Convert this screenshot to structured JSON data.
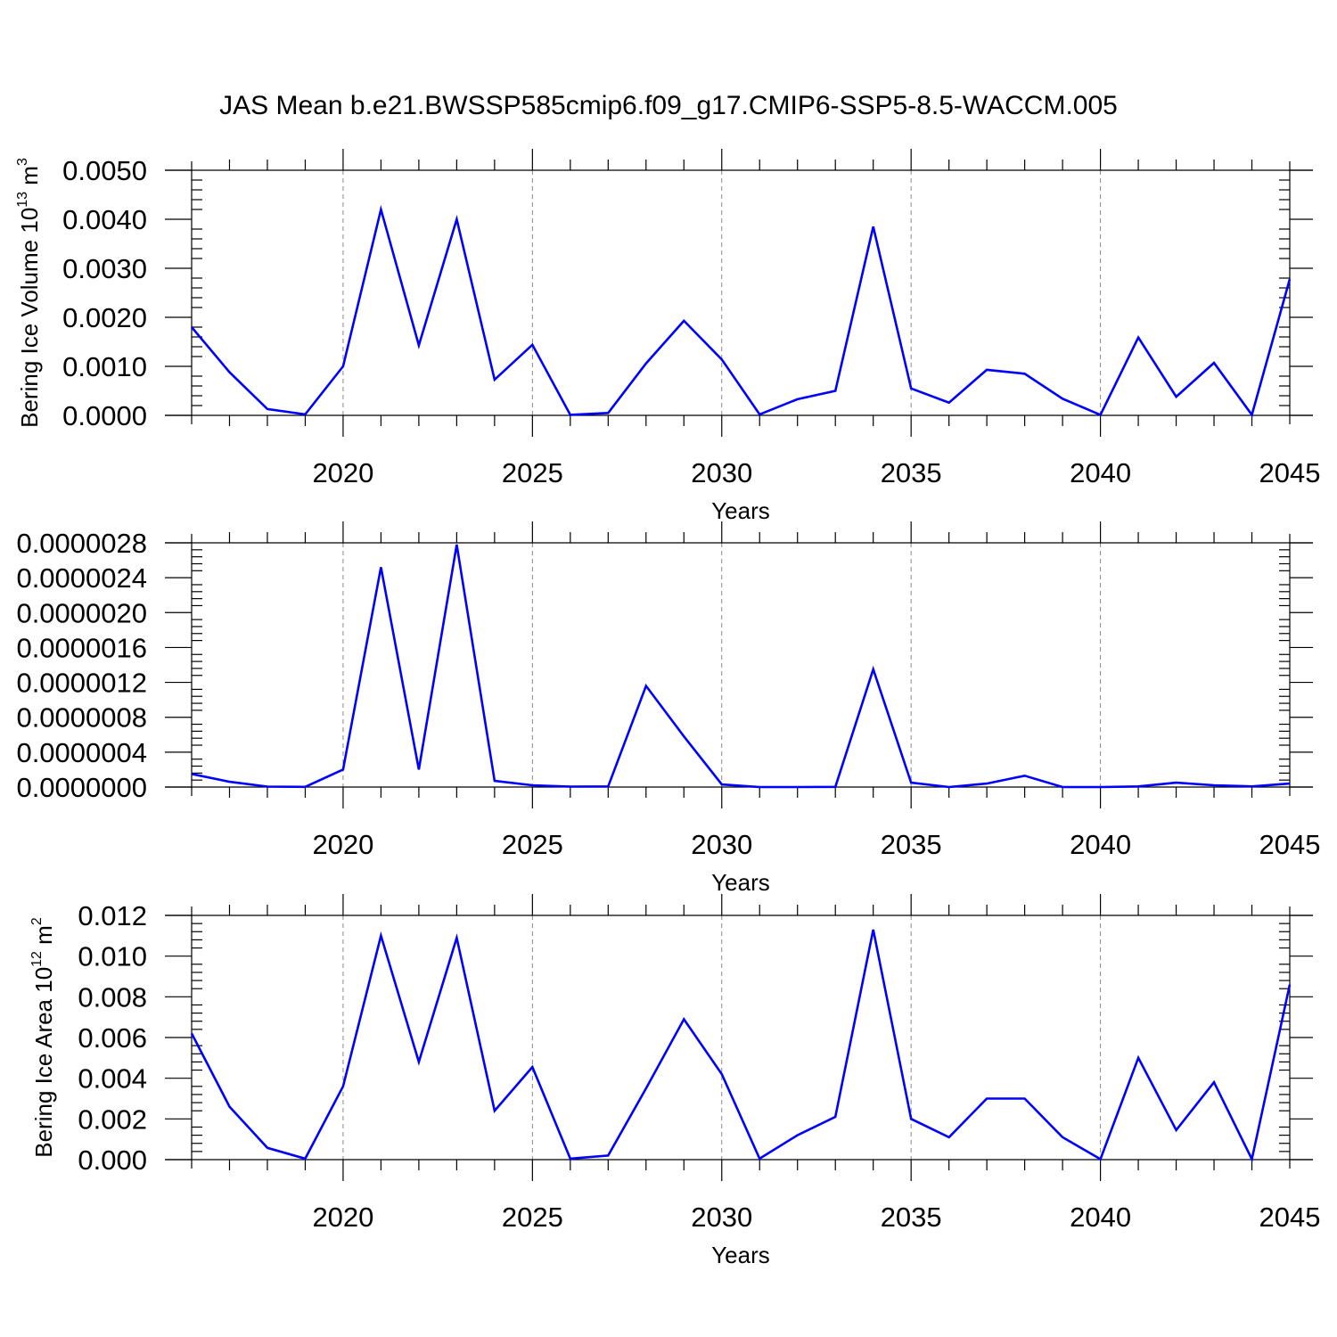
{
  "figure": {
    "title": "JAS Mean b.e21.BWSSP585cmip6.f09_g17.CMIP6-SSP5-8.5-WACCM.005"
  },
  "colors": {
    "series": "#0000ff",
    "axis": "#000000",
    "grid": "#888888",
    "background": "#ffffff"
  },
  "chart_data": [
    {
      "type": "line",
      "xlabel": "Years",
      "ylabel": "Bering Ice Volume 10",
      "ylabel_exp": "13",
      "ylabel_unit": " m",
      "ylabel_unit_exp": "3",
      "xlim": [
        2016,
        2045
      ],
      "ylim": [
        0,
        0.005
      ],
      "x_ticks": [
        "2020",
        "2025",
        "2030",
        "2035",
        "2040",
        "2045"
      ],
      "y_ticks": [
        "0.0000",
        "0.0010",
        "0.0020",
        "0.0030",
        "0.0040",
        "0.0050"
      ],
      "grid": "vertical dashed at major x ticks",
      "x": [
        2016,
        2017,
        2018,
        2019,
        2020,
        2021,
        2022,
        2023,
        2024,
        2025,
        2026,
        2027,
        2028,
        2029,
        2030,
        2031,
        2032,
        2033,
        2034,
        2035,
        2036,
        2037,
        2038,
        2039,
        2040,
        2041,
        2042,
        2043,
        2044,
        2045
      ],
      "series": [
        {
          "values": [
            0.0018,
            0.00088,
            0.00013,
            2e-05,
            0.001,
            0.0042,
            0.00143,
            0.004,
            0.00073,
            0.00144,
            1e-05,
            5e-05,
            0.00106,
            0.00193,
            0.00114,
            2e-05,
            0.00033,
            0.0005,
            0.00385,
            0.00055,
            0.00026,
            0.00093,
            0.00085,
            0.00034,
            1e-05,
            0.00159,
            0.00038,
            0.00107,
            1e-05,
            0.00278
          ]
        }
      ]
    },
    {
      "type": "line",
      "xlabel": "Years",
      "ylabel": "",
      "xlim": [
        2016,
        2045
      ],
      "ylim": [
        0,
        2.8e-06
      ],
      "x_ticks": [
        "2020",
        "2025",
        "2030",
        "2035",
        "2040",
        "2045"
      ],
      "y_ticks": [
        "0.0000000",
        "0.0000004",
        "0.0000008",
        "0.0000012",
        "0.0000016",
        "0.0000020",
        "0.0000024",
        "0.0000028"
      ],
      "grid": "vertical dashed at major x ticks",
      "x": [
        2016,
        2017,
        2018,
        2019,
        2020,
        2021,
        2022,
        2023,
        2024,
        2025,
        2026,
        2027,
        2028,
        2029,
        2030,
        2031,
        2032,
        2033,
        2034,
        2035,
        2036,
        2037,
        2038,
        2039,
        2040,
        2041,
        2042,
        2043,
        2044,
        2045
      ],
      "series": [
        {
          "values": [
            1.5e-07,
            6e-08,
            5e-09,
            2e-09,
            2e-07,
            2.52e-06,
            2e-07,
            2.78e-06,
            7e-08,
            2e-08,
            5e-09,
            7e-09,
            1.16e-06,
            5.8e-07,
            3e-08,
            0.0,
            0.0,
            2e-09,
            1.35e-06,
            5e-08,
            0.0,
            4e-08,
            1.3e-07,
            0.0,
            0.0,
            7e-09,
            5e-08,
            2e-08,
            7e-09,
            4e-08
          ]
        }
      ]
    },
    {
      "type": "line",
      "xlabel": "Years",
      "ylabel": "Bering Ice Area 10",
      "ylabel_exp": "12",
      "ylabel_unit": " m",
      "ylabel_unit_exp": "2",
      "xlim": [
        2016,
        2045
      ],
      "ylim": [
        0,
        0.012
      ],
      "x_ticks": [
        "2020",
        "2025",
        "2030",
        "2035",
        "2040",
        "2045"
      ],
      "y_ticks": [
        "0.000",
        "0.002",
        "0.004",
        "0.006",
        "0.008",
        "0.010",
        "0.012"
      ],
      "grid": "vertical dashed at major x ticks",
      "x": [
        2016,
        2017,
        2018,
        2019,
        2020,
        2021,
        2022,
        2023,
        2024,
        2025,
        2026,
        2027,
        2028,
        2029,
        2030,
        2031,
        2032,
        2033,
        2034,
        2035,
        2036,
        2037,
        2038,
        2039,
        2040,
        2041,
        2042,
        2043,
        2044,
        2045
      ],
      "series": [
        {
          "values": [
            0.0062,
            0.0026,
            0.00058,
            5e-05,
            0.0036,
            0.011,
            0.0048,
            0.0109,
            0.0024,
            0.00455,
            5e-05,
            0.0002,
            0.0035,
            0.0069,
            0.0042,
            5e-05,
            0.0012,
            0.0021,
            0.0113,
            0.002,
            0.0011,
            0.003,
            0.003,
            0.0011,
            2e-05,
            0.005,
            0.00145,
            0.0038,
            2e-05,
            0.0086
          ]
        }
      ]
    }
  ]
}
